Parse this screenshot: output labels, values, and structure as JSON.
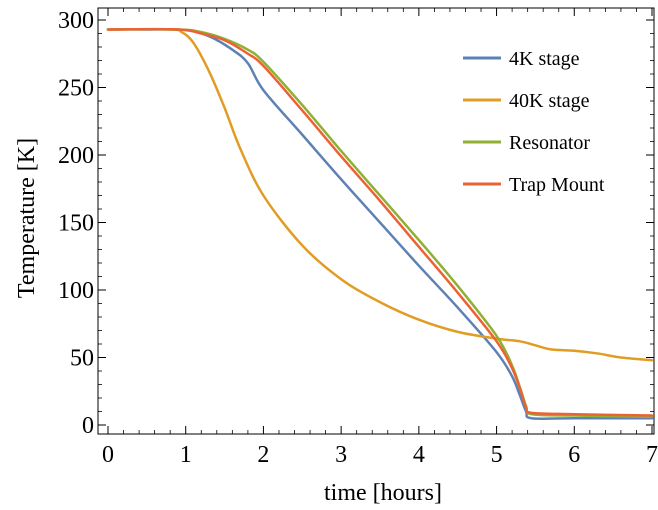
{
  "chart_data": {
    "type": "line",
    "xlabel": "time [hours]",
    "ylabel": "Temperature [K]",
    "xlim": [
      0,
      7
    ],
    "ylim": [
      0,
      300
    ],
    "xticks": [
      0,
      1,
      2,
      3,
      4,
      5,
      6,
      7
    ],
    "yticks": [
      0,
      50,
      100,
      150,
      200,
      250,
      300
    ],
    "grid": false,
    "legend_position": "top-right",
    "series": [
      {
        "name": "4K stage",
        "color": "#5e81b5",
        "points": [
          [
            0,
            293
          ],
          [
            0.5,
            293
          ],
          [
            1.0,
            292.5
          ],
          [
            1.3,
            288
          ],
          [
            1.6,
            278
          ],
          [
            1.8,
            268
          ],
          [
            2.0,
            248
          ],
          [
            2.5,
            215
          ],
          [
            3.0,
            182
          ],
          [
            3.5,
            150
          ],
          [
            4.0,
            118
          ],
          [
            4.5,
            87
          ],
          [
            5.0,
            54
          ],
          [
            5.2,
            36
          ],
          [
            5.3,
            22
          ],
          [
            5.38,
            10
          ],
          [
            5.45,
            5
          ],
          [
            6.0,
            5
          ],
          [
            7.0,
            5
          ]
        ]
      },
      {
        "name": "40K stage",
        "color": "#e19c24",
        "points": [
          [
            0,
            293
          ],
          [
            0.8,
            293
          ],
          [
            0.95,
            291
          ],
          [
            1.1,
            283
          ],
          [
            1.3,
            262
          ],
          [
            1.5,
            235
          ],
          [
            1.7,
            205
          ],
          [
            2.0,
            170
          ],
          [
            2.5,
            133
          ],
          [
            3.0,
            108
          ],
          [
            3.5,
            91
          ],
          [
            4.0,
            78
          ],
          [
            4.5,
            69
          ],
          [
            5.0,
            64
          ],
          [
            5.3,
            62
          ],
          [
            5.5,
            59
          ],
          [
            5.7,
            56
          ],
          [
            6.0,
            55
          ],
          [
            6.3,
            53
          ],
          [
            6.6,
            50
          ],
          [
            7.0,
            48
          ]
        ]
      },
      {
        "name": "Resonator",
        "color": "#8fb032",
        "points": [
          [
            0,
            293
          ],
          [
            0.9,
            293
          ],
          [
            1.2,
            291
          ],
          [
            1.5,
            286
          ],
          [
            1.8,
            278
          ],
          [
            2.0,
            269
          ],
          [
            2.5,
            237
          ],
          [
            3.0,
            203
          ],
          [
            3.5,
            170
          ],
          [
            4.0,
            137
          ],
          [
            4.5,
            103
          ],
          [
            5.0,
            66
          ],
          [
            5.2,
            44
          ],
          [
            5.3,
            28
          ],
          [
            5.38,
            14
          ],
          [
            5.45,
            8
          ],
          [
            6.0,
            7
          ],
          [
            7.0,
            6
          ]
        ]
      },
      {
        "name": "Trap Mount",
        "color": "#eb6235",
        "points": [
          [
            0,
            293
          ],
          [
            0.9,
            293
          ],
          [
            1.2,
            290
          ],
          [
            1.5,
            285
          ],
          [
            1.8,
            275
          ],
          [
            2.0,
            266
          ],
          [
            2.5,
            233
          ],
          [
            3.0,
            199
          ],
          [
            3.5,
            166
          ],
          [
            4.0,
            132
          ],
          [
            4.5,
            98
          ],
          [
            5.0,
            62
          ],
          [
            5.2,
            42
          ],
          [
            5.3,
            27
          ],
          [
            5.38,
            13
          ],
          [
            5.45,
            9
          ],
          [
            6.0,
            8
          ],
          [
            7.0,
            7
          ]
        ]
      }
    ]
  }
}
